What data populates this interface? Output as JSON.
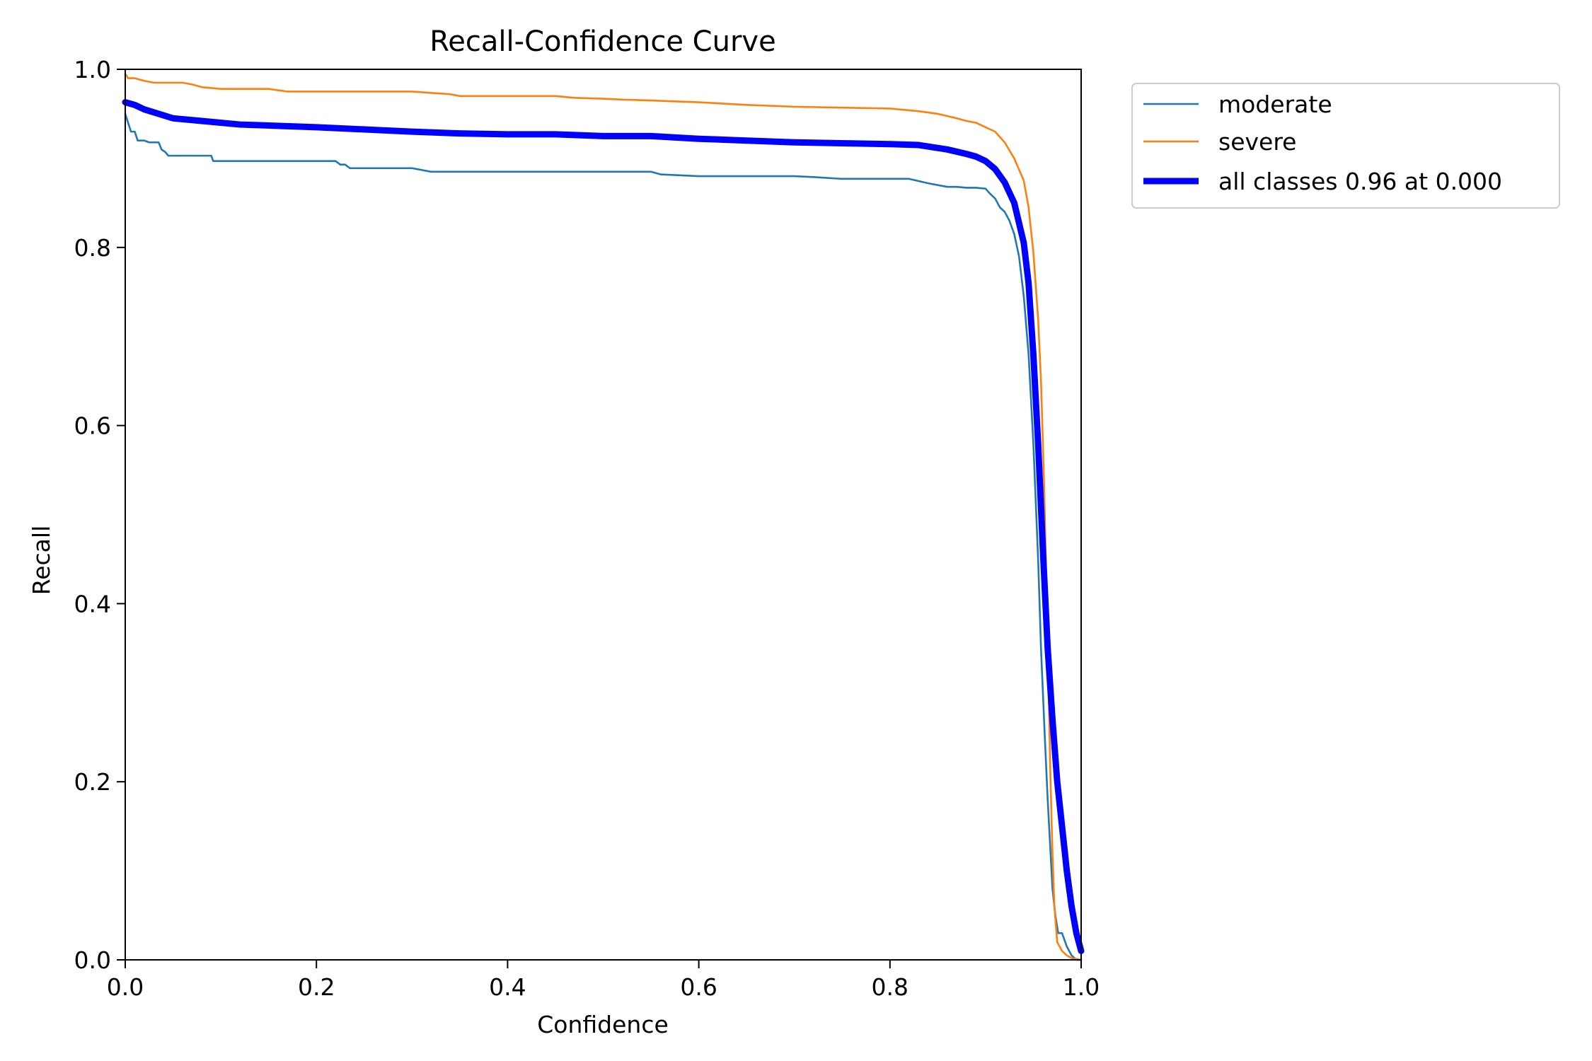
{
  "chart_data": {
    "type": "line",
    "title": "Recall-Confidence Curve",
    "xlabel": "Confidence",
    "ylabel": "Recall",
    "xlim": [
      0,
      1
    ],
    "ylim": [
      0,
      1
    ],
    "xticks": [
      "0.0",
      "0.2",
      "0.4",
      "0.6",
      "0.8",
      "1.0"
    ],
    "yticks": [
      "0.0",
      "0.2",
      "0.4",
      "0.6",
      "0.8",
      "1.0"
    ],
    "grid": false,
    "legend_position": "outside top-right",
    "series": [
      {
        "name": "moderate",
        "color": "#1f77b4",
        "line_style": "thin",
        "x": [
          0,
          0.003,
          0.006,
          0.01,
          0.013,
          0.016,
          0.02,
          0.025,
          0.035,
          0.038,
          0.042,
          0.045,
          0.05,
          0.07,
          0.09,
          0.092,
          0.11,
          0.15,
          0.2,
          0.22,
          0.225,
          0.23,
          0.235,
          0.3,
          0.32,
          0.4,
          0.5,
          0.55,
          0.56,
          0.6,
          0.65,
          0.7,
          0.72,
          0.75,
          0.8,
          0.82,
          0.84,
          0.86,
          0.87,
          0.88,
          0.89,
          0.9,
          0.905,
          0.91,
          0.915,
          0.92,
          0.925,
          0.93,
          0.935,
          0.94,
          0.945,
          0.95,
          0.955,
          0.958,
          0.962,
          0.965,
          0.968,
          0.97,
          0.973,
          0.976,
          0.98,
          0.985,
          0.99,
          0.995,
          1.0
        ],
        "y": [
          0.95,
          0.94,
          0.93,
          0.93,
          0.92,
          0.92,
          0.92,
          0.918,
          0.918,
          0.91,
          0.907,
          0.903,
          0.903,
          0.903,
          0.903,
          0.897,
          0.897,
          0.897,
          0.897,
          0.897,
          0.893,
          0.893,
          0.889,
          0.889,
          0.885,
          0.885,
          0.885,
          0.885,
          0.882,
          0.88,
          0.88,
          0.88,
          0.879,
          0.877,
          0.877,
          0.877,
          0.872,
          0.868,
          0.868,
          0.867,
          0.867,
          0.866,
          0.86,
          0.855,
          0.845,
          0.84,
          0.83,
          0.815,
          0.79,
          0.745,
          0.68,
          0.58,
          0.45,
          0.35,
          0.25,
          0.18,
          0.12,
          0.08,
          0.05,
          0.03,
          0.03,
          0.015,
          0.005,
          0.0,
          0.0
        ]
      },
      {
        "name": "severe",
        "color": "#ff7f0e",
        "line_style": "thin",
        "x": [
          0,
          0.003,
          0.01,
          0.02,
          0.03,
          0.06,
          0.07,
          0.08,
          0.1,
          0.15,
          0.17,
          0.2,
          0.25,
          0.3,
          0.34,
          0.35,
          0.4,
          0.45,
          0.47,
          0.5,
          0.52,
          0.55,
          0.6,
          0.65,
          0.7,
          0.75,
          0.8,
          0.83,
          0.85,
          0.87,
          0.88,
          0.89,
          0.9,
          0.91,
          0.92,
          0.93,
          0.94,
          0.945,
          0.95,
          0.955,
          0.958,
          0.96,
          0.962,
          0.964,
          0.966,
          0.968,
          0.97,
          0.972,
          0.975,
          0.98,
          0.985,
          0.99,
          1.0
        ],
        "y": [
          0.995,
          0.99,
          0.99,
          0.987,
          0.985,
          0.985,
          0.983,
          0.98,
          0.978,
          0.978,
          0.975,
          0.975,
          0.975,
          0.975,
          0.972,
          0.97,
          0.97,
          0.97,
          0.968,
          0.967,
          0.966,
          0.965,
          0.963,
          0.96,
          0.958,
          0.957,
          0.956,
          0.953,
          0.95,
          0.945,
          0.942,
          0.94,
          0.935,
          0.93,
          0.918,
          0.9,
          0.875,
          0.845,
          0.795,
          0.72,
          0.65,
          0.58,
          0.5,
          0.4,
          0.3,
          0.2,
          0.12,
          0.06,
          0.02,
          0.01,
          0.005,
          0.002,
          0.0
        ]
      },
      {
        "name": "all classes 0.96 at 0.000",
        "color": "#0000ff",
        "line_style": "thick",
        "x": [
          0,
          0.01,
          0.02,
          0.035,
          0.05,
          0.08,
          0.12,
          0.2,
          0.26,
          0.3,
          0.35,
          0.4,
          0.45,
          0.5,
          0.55,
          0.6,
          0.65,
          0.7,
          0.75,
          0.8,
          0.83,
          0.86,
          0.88,
          0.89,
          0.9,
          0.91,
          0.92,
          0.93,
          0.94,
          0.945,
          0.95,
          0.955,
          0.96,
          0.965,
          0.97,
          0.975,
          0.98,
          0.985,
          0.99,
          0.995,
          1.0
        ],
        "y": [
          0.963,
          0.96,
          0.955,
          0.95,
          0.945,
          0.942,
          0.938,
          0.935,
          0.932,
          0.93,
          0.928,
          0.927,
          0.927,
          0.925,
          0.925,
          0.922,
          0.92,
          0.918,
          0.917,
          0.916,
          0.915,
          0.91,
          0.905,
          0.902,
          0.897,
          0.888,
          0.873,
          0.85,
          0.805,
          0.76,
          0.68,
          0.58,
          0.46,
          0.35,
          0.27,
          0.2,
          0.15,
          0.1,
          0.06,
          0.03,
          0.01
        ]
      }
    ]
  }
}
